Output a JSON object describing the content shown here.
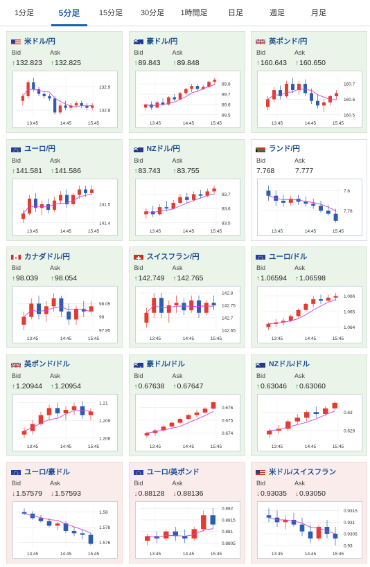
{
  "tabs": [
    {
      "label": "1分足",
      "active": false
    },
    {
      "label": "5分足",
      "active": true
    },
    {
      "label": "15分足",
      "active": false
    },
    {
      "label": "30分足",
      "active": false
    },
    {
      "label": "1時間足",
      "active": false
    },
    {
      "label": "日足",
      "active": false
    },
    {
      "label": "週足",
      "active": false
    },
    {
      "label": "月足",
      "active": false
    }
  ],
  "bid_label": "Bid",
  "ask_label": "Ask",
  "colors": {
    "up": "#2e8b3a",
    "down": "#c0392b",
    "ma": "#d63fd6",
    "candle_up": "#e33c2f",
    "candle_down": "#2a5db0"
  },
  "cards": [
    {
      "pair": "米ドル/円",
      "flag": "us-jp",
      "trend": "up",
      "bid": "132.823",
      "ask": "132.825",
      "x_ticks": [
        "13:45",
        "14:45",
        "15:45"
      ],
      "y_ticks": [
        "132.9",
        "132.8"
      ],
      "ohlc": [
        [
          132.84,
          132.87,
          132.82,
          132.86
        ],
        [
          132.86,
          132.93,
          132.85,
          132.92
        ],
        [
          132.92,
          132.94,
          132.88,
          132.89
        ],
        [
          132.89,
          132.9,
          132.86,
          132.87
        ],
        [
          132.87,
          132.88,
          132.85,
          132.86
        ],
        [
          132.86,
          132.87,
          132.84,
          132.85
        ],
        [
          132.85,
          132.86,
          132.78,
          132.79
        ],
        [
          132.79,
          132.83,
          132.78,
          132.82
        ],
        [
          132.82,
          132.84,
          132.8,
          132.81
        ],
        [
          132.81,
          132.83,
          132.8,
          132.82
        ],
        [
          132.82,
          132.84,
          132.81,
          132.83
        ],
        [
          132.83,
          132.84,
          132.81,
          132.82
        ],
        [
          132.82,
          132.83,
          132.8,
          132.81
        ],
        [
          132.81,
          132.83,
          132.8,
          132.82
        ]
      ]
    },
    {
      "pair": "豪ドル/円",
      "flag": "au-jp",
      "trend": "up",
      "bid": "89.843",
      "ask": "89.848",
      "x_ticks": [
        "13:45",
        "14:45",
        "15:45"
      ],
      "y_ticks": [
        "89.8",
        "89.7",
        "89.6",
        "89.5"
      ],
      "ohlc": [
        [
          89.57,
          89.61,
          89.54,
          89.6
        ],
        [
          89.6,
          89.63,
          89.55,
          89.57
        ],
        [
          89.57,
          89.64,
          89.56,
          89.62
        ],
        [
          89.62,
          89.66,
          89.59,
          89.6
        ],
        [
          89.6,
          89.68,
          89.59,
          89.67
        ],
        [
          89.67,
          89.7,
          89.63,
          89.65
        ],
        [
          89.65,
          89.72,
          89.64,
          89.71
        ],
        [
          89.71,
          89.76,
          89.69,
          89.75
        ],
        [
          89.75,
          89.8,
          89.72,
          89.78
        ],
        [
          89.78,
          89.8,
          89.73,
          89.75
        ],
        [
          89.75,
          89.79,
          89.74,
          89.77
        ],
        [
          89.77,
          89.83,
          89.76,
          89.82
        ],
        [
          89.82,
          89.86,
          89.79,
          89.84
        ]
      ]
    },
    {
      "pair": "英ポンド/円",
      "flag": "gb-jp",
      "trend": "up",
      "bid": "160.643",
      "ask": "160.650",
      "x_ticks": [
        "13:45",
        "14:45",
        "15:45"
      ],
      "y_ticks": [
        "160.7",
        "160.6",
        "160.5"
      ],
      "ohlc": [
        [
          160.55,
          160.62,
          160.53,
          160.6
        ],
        [
          160.6,
          160.68,
          160.58,
          160.66
        ],
        [
          160.66,
          160.69,
          160.6,
          160.62
        ],
        [
          160.62,
          160.72,
          160.61,
          160.7
        ],
        [
          160.7,
          160.74,
          160.64,
          160.66
        ],
        [
          160.66,
          160.72,
          160.63,
          160.7
        ],
        [
          160.7,
          160.73,
          160.62,
          160.64
        ],
        [
          160.64,
          160.67,
          160.57,
          160.59
        ],
        [
          160.59,
          160.63,
          160.54,
          160.56
        ],
        [
          160.56,
          160.6,
          160.52,
          160.58
        ],
        [
          160.58,
          160.63,
          160.56,
          160.62
        ],
        [
          160.62,
          160.66,
          160.6,
          160.64
        ]
      ]
    },
    {
      "pair": "ユーロ/円",
      "flag": "eu-jp",
      "trend": "up",
      "bid": "141.581",
      "ask": "141.586",
      "x_ticks": [
        "13:45",
        "14:45",
        "15:45"
      ],
      "y_ticks": [
        "141.5",
        "141.4"
      ],
      "ohlc": [
        [
          141.42,
          141.47,
          141.4,
          141.45
        ],
        [
          141.45,
          141.55,
          141.44,
          141.53
        ],
        [
          141.53,
          141.56,
          141.46,
          141.48
        ],
        [
          141.48,
          141.52,
          141.44,
          141.5
        ],
        [
          141.5,
          141.53,
          141.45,
          141.47
        ],
        [
          141.47,
          141.54,
          141.46,
          141.52
        ],
        [
          141.52,
          141.57,
          141.5,
          141.55
        ],
        [
          141.55,
          141.58,
          141.48,
          141.5
        ],
        [
          141.5,
          141.56,
          141.49,
          141.55
        ],
        [
          141.55,
          141.6,
          141.53,
          141.58
        ],
        [
          141.58,
          141.6,
          141.54,
          141.56
        ],
        [
          141.56,
          141.6,
          141.55,
          141.58
        ]
      ]
    },
    {
      "pair": "NZドル/円",
      "flag": "nz-jp",
      "trend": "up",
      "bid": "83.743",
      "ask": "83.755",
      "x_ticks": [
        "13:45",
        "14:45",
        "15:45"
      ],
      "y_ticks": [
        "83.7",
        "83.6",
        "83.5"
      ],
      "ohlc": [
        [
          83.56,
          83.6,
          83.53,
          83.58
        ],
        [
          83.58,
          83.62,
          83.54,
          83.56
        ],
        [
          83.56,
          83.63,
          83.55,
          83.61
        ],
        [
          83.61,
          83.65,
          83.58,
          83.6
        ],
        [
          83.6,
          83.66,
          83.59,
          83.64
        ],
        [
          83.64,
          83.7,
          83.63,
          83.68
        ],
        [
          83.68,
          83.71,
          83.64,
          83.66
        ],
        [
          83.66,
          83.72,
          83.65,
          83.7
        ],
        [
          83.7,
          83.73,
          83.67,
          83.69
        ],
        [
          83.69,
          83.74,
          83.68,
          83.72
        ],
        [
          83.72,
          83.76,
          83.7,
          83.74
        ]
      ]
    },
    {
      "pair": "ランド/円",
      "flag": "za-jp",
      "trend": "neutral",
      "bid": "7.768",
      "ask": "7.777",
      "x_ticks": [
        "13:45",
        "14:45",
        "15:45"
      ],
      "y_ticks": [
        "7.8",
        "7.78"
      ],
      "ohlc": [
        [
          7.8,
          7.805,
          7.79,
          7.795
        ],
        [
          7.795,
          7.8,
          7.785,
          7.79
        ],
        [
          7.79,
          7.796,
          7.784,
          7.788
        ],
        [
          7.788,
          7.795,
          7.785,
          7.792
        ],
        [
          7.792,
          7.796,
          7.786,
          7.789
        ],
        [
          7.789,
          7.794,
          7.784,
          7.787
        ],
        [
          7.787,
          7.792,
          7.782,
          7.785
        ],
        [
          7.785,
          7.79,
          7.778,
          7.78
        ],
        [
          7.78,
          7.786,
          7.775,
          7.777
        ],
        [
          7.777,
          7.782,
          7.768,
          7.77
        ]
      ]
    },
    {
      "pair": "カナダドル/円",
      "flag": "ca-jp",
      "trend": "up",
      "bid": "98.039",
      "ask": "98.054",
      "x_ticks": [
        "13:45",
        "14:45",
        "15:45"
      ],
      "y_ticks": [
        "98.05",
        "98",
        "97.95"
      ],
      "ohlc": [
        [
          97.97,
          98.02,
          97.95,
          98.0
        ],
        [
          98.0,
          98.07,
          97.99,
          98.05
        ],
        [
          98.05,
          98.08,
          97.99,
          98.01
        ],
        [
          98.01,
          98.06,
          97.98,
          98.04
        ],
        [
          98.04,
          98.09,
          98.02,
          98.07
        ],
        [
          98.07,
          98.08,
          98.0,
          98.02
        ],
        [
          98.02,
          98.05,
          97.97,
          97.99
        ],
        [
          97.99,
          98.04,
          97.97,
          98.03
        ],
        [
          98.03,
          98.06,
          98.0,
          98.02
        ],
        [
          98.02,
          98.06,
          98.01,
          98.04
        ]
      ]
    },
    {
      "pair": "スイスフラン/円",
      "flag": "ch-jp",
      "trend": "up",
      "bid": "142.749",
      "ask": "142.765",
      "x_ticks": [
        "13:45",
        "14:45",
        "15:45"
      ],
      "y_ticks": [
        "142.8",
        "142.75",
        "142.7",
        "142.65"
      ],
      "ohlc": [
        [
          142.68,
          142.74,
          142.66,
          142.72
        ],
        [
          142.72,
          142.8,
          142.7,
          142.78
        ],
        [
          142.78,
          142.8,
          142.7,
          142.72
        ],
        [
          142.72,
          142.77,
          142.68,
          142.75
        ],
        [
          142.75,
          142.79,
          142.72,
          142.76
        ],
        [
          142.76,
          142.78,
          142.71,
          142.73
        ],
        [
          142.73,
          142.79,
          142.72,
          142.77
        ],
        [
          142.77,
          142.79,
          142.7,
          142.72
        ],
        [
          142.72,
          142.77,
          142.71,
          142.76
        ],
        [
          142.76,
          142.79,
          142.73,
          142.75
        ]
      ]
    },
    {
      "pair": "ユーロ/ドル",
      "flag": "eu-us",
      "trend": "up",
      "bid": "1.06594",
      "ask": "1.06598",
      "x_ticks": [
        "13:45",
        "14:45",
        "15:45"
      ],
      "y_ticks": [
        "1.066",
        "1.065",
        "1.064"
      ],
      "ohlc": [
        [
          1.064,
          1.0643,
          1.0638,
          1.0642
        ],
        [
          1.0642,
          1.0645,
          1.064,
          1.0643
        ],
        [
          1.0643,
          1.0646,
          1.0641,
          1.0644
        ],
        [
          1.0644,
          1.0648,
          1.0643,
          1.0647
        ],
        [
          1.0647,
          1.0652,
          1.0646,
          1.0651
        ],
        [
          1.0651,
          1.0656,
          1.065,
          1.0655
        ],
        [
          1.0655,
          1.066,
          1.0653,
          1.0658
        ],
        [
          1.0658,
          1.0661,
          1.0655,
          1.0657
        ],
        [
          1.0657,
          1.0661,
          1.0656,
          1.0659
        ],
        [
          1.0659,
          1.0662,
          1.0657,
          1.066
        ]
      ]
    },
    {
      "pair": "英ポンド/ドル",
      "flag": "gb-us",
      "trend": "up",
      "bid": "1.20944",
      "ask": "1.20954",
      "x_ticks": [
        "13:45",
        "14:45",
        "15:45"
      ],
      "y_ticks": [
        "1.21",
        "1.209",
        "1.208"
      ],
      "ohlc": [
        [
          1.2082,
          1.2086,
          1.208,
          1.2084
        ],
        [
          1.2084,
          1.209,
          1.2082,
          1.2088
        ],
        [
          1.2088,
          1.2095,
          1.2087,
          1.2093
        ],
        [
          1.2093,
          1.2099,
          1.209,
          1.2097
        ],
        [
          1.2097,
          1.21,
          1.2092,
          1.2094
        ],
        [
          1.2094,
          1.2098,
          1.209,
          1.2096
        ],
        [
          1.2096,
          1.21,
          1.2093,
          1.2098
        ],
        [
          1.2098,
          1.2101,
          1.2091,
          1.2093
        ],
        [
          1.2093,
          1.2097,
          1.209,
          1.2095
        ]
      ]
    },
    {
      "pair": "豪ドル/ドル",
      "flag": "au-us",
      "trend": "up",
      "bid": "0.67638",
      "ask": "0.67647",
      "x_ticks": [
        "13:45",
        "14:45",
        "15:45"
      ],
      "y_ticks": [
        "0.676",
        "0.675",
        "0.674"
      ],
      "ohlc": [
        [
          0.6738,
          0.6741,
          0.6736,
          0.674
        ],
        [
          0.674,
          0.6743,
          0.6738,
          0.6742
        ],
        [
          0.6742,
          0.6746,
          0.6741,
          0.6745
        ],
        [
          0.6745,
          0.6749,
          0.6744,
          0.6748
        ],
        [
          0.6748,
          0.6752,
          0.6747,
          0.6751
        ],
        [
          0.6751,
          0.6755,
          0.675,
          0.6754
        ],
        [
          0.6754,
          0.6758,
          0.6752,
          0.6756
        ],
        [
          0.6756,
          0.676,
          0.6755,
          0.6759
        ],
        [
          0.6759,
          0.6765,
          0.6758,
          0.6764
        ]
      ]
    },
    {
      "pair": "NZドル/ドル",
      "flag": "nz-us",
      "trend": "up",
      "bid": "0.63046",
      "ask": "0.63060",
      "x_ticks": [
        "13:45",
        "14:45",
        "15:45"
      ],
      "y_ticks": [
        "0.63",
        "0.629"
      ],
      "ohlc": [
        [
          0.6288,
          0.6291,
          0.6286,
          0.629
        ],
        [
          0.629,
          0.6293,
          0.6288,
          0.6291
        ],
        [
          0.6291,
          0.6296,
          0.629,
          0.6295
        ],
        [
          0.6295,
          0.6299,
          0.6293,
          0.6297
        ],
        [
          0.6297,
          0.6301,
          0.6295,
          0.63
        ],
        [
          0.63,
          0.6303,
          0.6297,
          0.6299
        ],
        [
          0.6299,
          0.6303,
          0.6298,
          0.6302
        ],
        [
          0.6302,
          0.6306,
          0.6301,
          0.6305
        ]
      ]
    },
    {
      "pair": "ユーロ/豪ドル",
      "flag": "eu-au",
      "trend": "down",
      "bid": "1.57579",
      "ask": "1.57593",
      "x_ticks": [
        "13:45",
        "14:45",
        "15:45"
      ],
      "y_ticks": [
        "1.58",
        "1.578",
        "1.576"
      ],
      "ohlc": [
        [
          1.58,
          1.5805,
          1.5796,
          1.5798
        ],
        [
          1.5798,
          1.5801,
          1.579,
          1.5792
        ],
        [
          1.5792,
          1.5796,
          1.5786,
          1.5788
        ],
        [
          1.5788,
          1.5792,
          1.578,
          1.5782
        ],
        [
          1.5782,
          1.5787,
          1.5776,
          1.5785
        ],
        [
          1.5785,
          1.5788,
          1.5772,
          1.5775
        ],
        [
          1.5775,
          1.578,
          1.5768,
          1.5772
        ],
        [
          1.5772,
          1.5778,
          1.5764,
          1.577
        ],
        [
          1.577,
          1.5773,
          1.5756,
          1.5758
        ]
      ]
    },
    {
      "pair": "ユーロ/英ポンド",
      "flag": "eu-gb",
      "trend": "down",
      "bid": "0.88128",
      "ask": "0.88136",
      "x_ticks": [
        "13:45",
        "14:45",
        "15:45"
      ],
      "y_ticks": [
        "0.882",
        "0.8815",
        "0.881",
        "0.8805"
      ],
      "ohlc": [
        [
          0.8806,
          0.8809,
          0.8804,
          0.8808
        ],
        [
          0.8808,
          0.881,
          0.8805,
          0.8807
        ],
        [
          0.8807,
          0.8811,
          0.8806,
          0.881
        ],
        [
          0.881,
          0.8812,
          0.8806,
          0.8808
        ],
        [
          0.8808,
          0.8811,
          0.8805,
          0.8807
        ],
        [
          0.8807,
          0.8812,
          0.8806,
          0.8811
        ],
        [
          0.8811,
          0.8819,
          0.881,
          0.8817
        ],
        [
          0.8817,
          0.882,
          0.8811,
          0.8813
        ]
      ]
    },
    {
      "pair": "米ドル/スイスフラン",
      "flag": "us-ch",
      "trend": "down",
      "bid": "0.93035",
      "ask": "0.93050",
      "x_ticks": [
        "13:45",
        "14:45",
        "15:45"
      ],
      "y_ticks": [
        "0.9315",
        "0.931",
        "0.9305",
        "0.93"
      ],
      "ohlc": [
        [
          0.9313,
          0.9316,
          0.931,
          0.9312
        ],
        [
          0.9312,
          0.9315,
          0.9308,
          0.931
        ],
        [
          0.931,
          0.9313,
          0.9307,
          0.9311
        ],
        [
          0.9311,
          0.9314,
          0.9308,
          0.9309
        ],
        [
          0.9309,
          0.9312,
          0.9304,
          0.9306
        ],
        [
          0.9306,
          0.9309,
          0.9301,
          0.9303
        ],
        [
          0.9303,
          0.9309,
          0.9302,
          0.9308
        ],
        [
          0.9308,
          0.9311,
          0.9303,
          0.9305
        ],
        [
          0.9305,
          0.9308,
          0.93,
          0.9303
        ]
      ]
    }
  ]
}
